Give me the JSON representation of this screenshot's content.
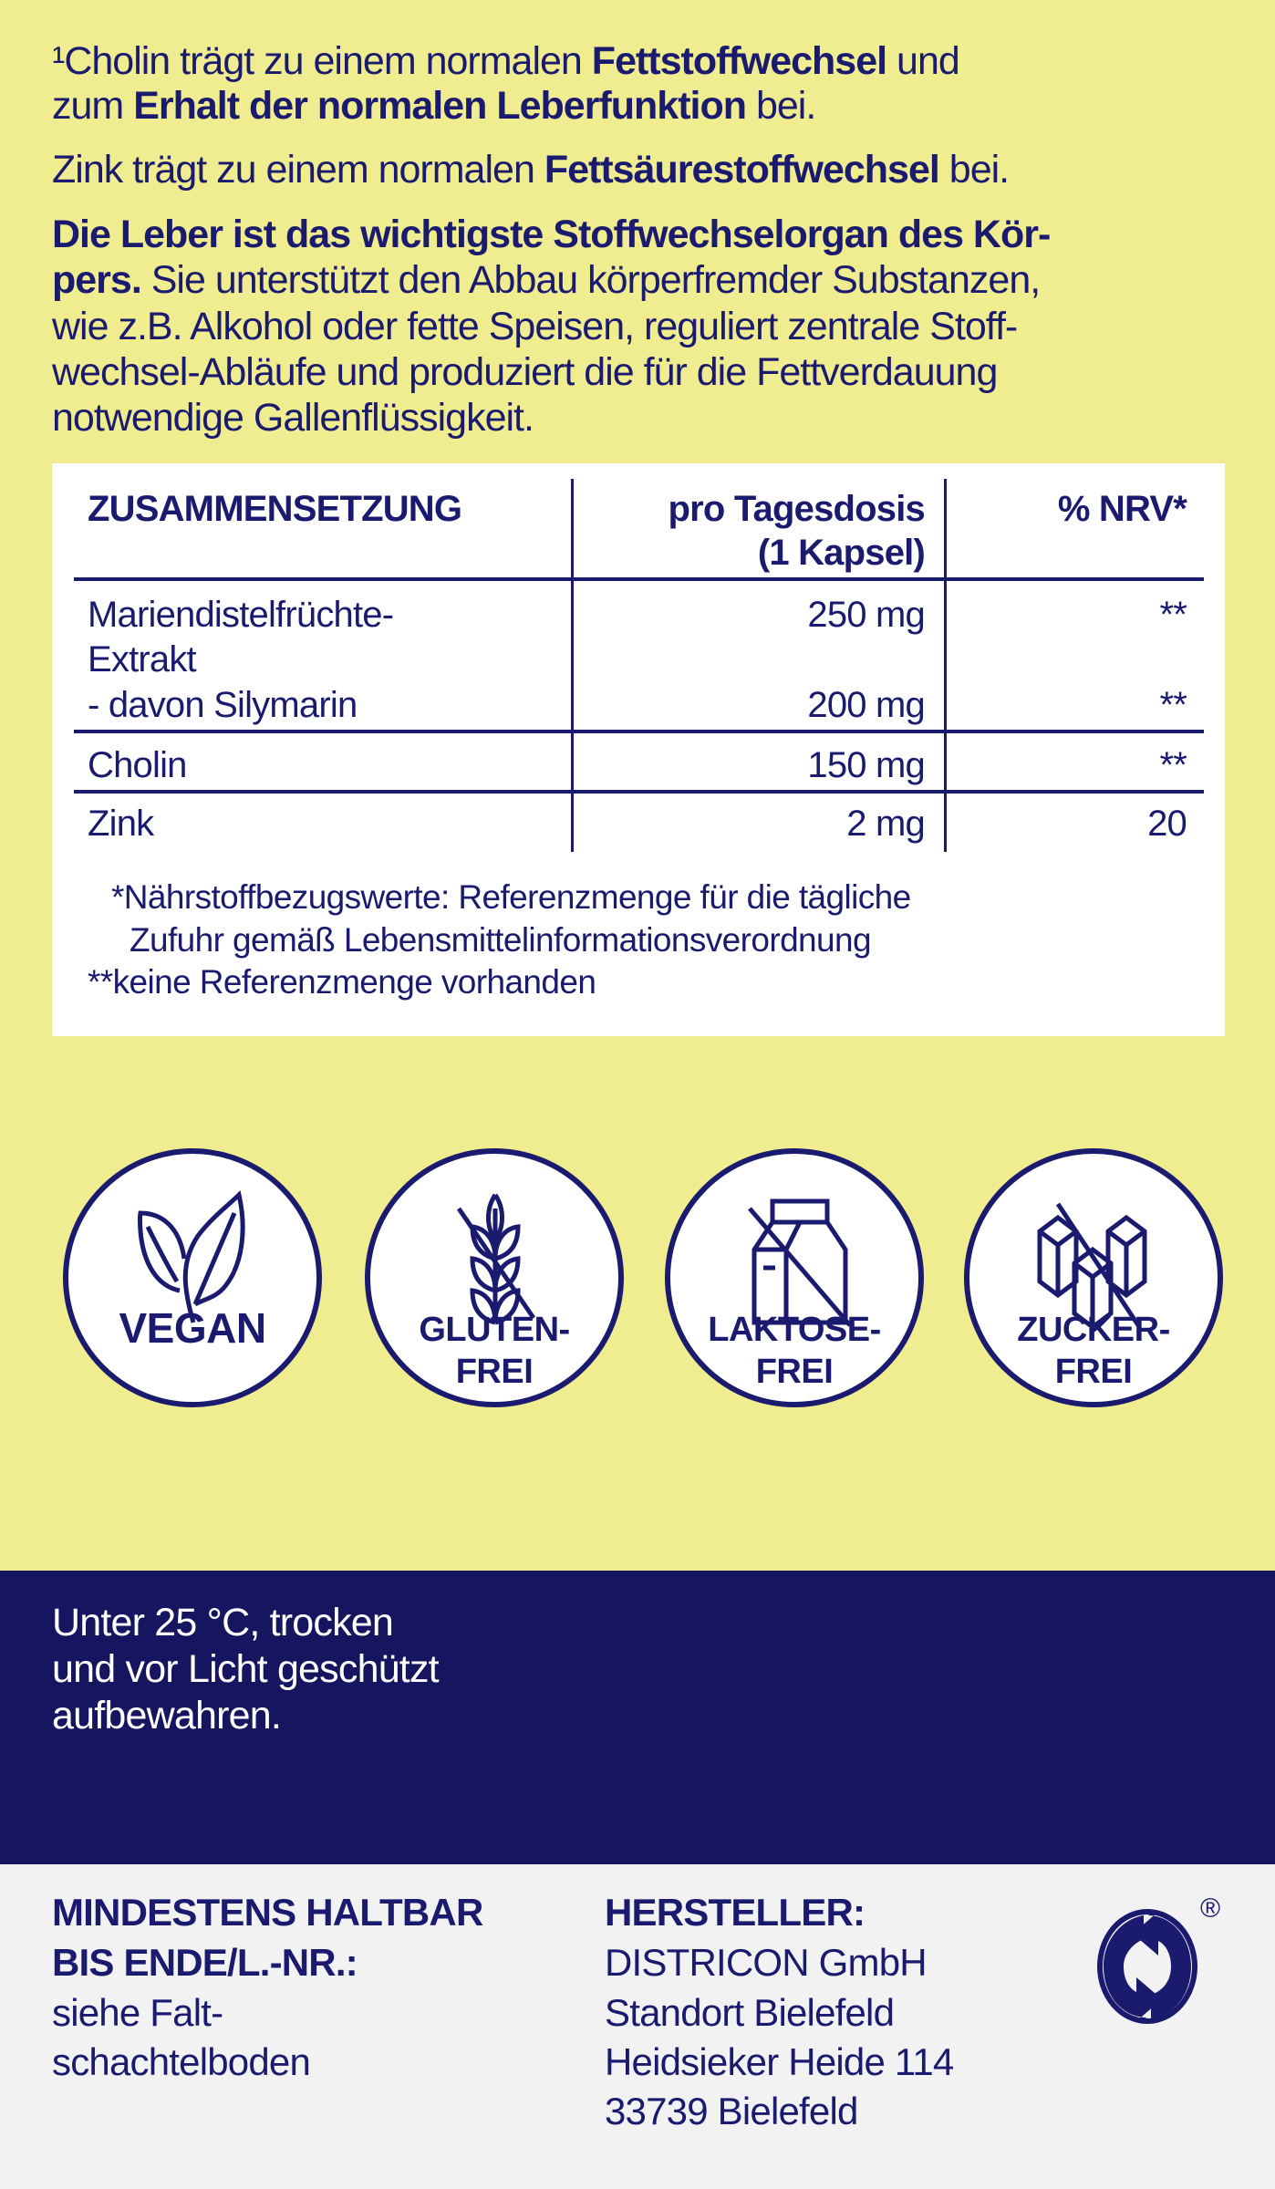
{
  "intro": {
    "p1_line1": [
      "¹Cholin trägt zu einem normalen ",
      "Fettstoffwechsel",
      " und"
    ],
    "p1_line2": [
      "zum ",
      "Erhalt der normalen Leberfunktion",
      " bei."
    ],
    "p2": [
      "Zink trägt zu einem normalen ",
      "Fettsäurestoffwechsel",
      " bei."
    ],
    "p3_line1": "Die Leber ist das wichtigste Stoffwechselorgan des Kör-",
    "p3_line2": [
      "pers.",
      " Sie unterstützt den Abbau körperfremder Substanzen,"
    ],
    "p3_line3": "wie z.B. Alkohol oder fette Speisen, reguliert zentrale Stoff-",
    "p3_line4": "wechsel-Abläufe und produziert die für die Fettverdauung",
    "p3_line5": "notwendige Gallenflüssigkeit."
  },
  "table": {
    "headers": [
      "ZUSAMMENSETZUNG",
      "pro Tagesdosis",
      "(1 Kapsel)",
      "% NRV*"
    ],
    "rows": [
      {
        "name": "Mariendistelfrüchte-",
        "name2": "Extrakt",
        "amount": "250 mg",
        "nrv": "**"
      },
      {
        "name": "- davon Silymarin",
        "amount": "200 mg",
        "nrv": "**"
      },
      {
        "name": "Cholin",
        "amount": "150 mg",
        "nrv": "**"
      },
      {
        "name": "Zink",
        "amount": "2 mg",
        "nrv": "20"
      }
    ],
    "footnotes": [
      "*Nährstoffbezugswerte: Referenzmenge für die tägliche",
      "Zufuhr gemäß Lebensmittelinformationsverordnung",
      "**keine Referenzmenge vorhanden"
    ]
  },
  "badges": [
    {
      "icon": "leaf-icon",
      "label1": "VEGAN"
    },
    {
      "icon": "wheat-crossed-icon",
      "label1": "GLUTEN-",
      "label2": "FREI"
    },
    {
      "icon": "milk-carton-crossed-icon",
      "label1": "LAKTOSE-",
      "label2": "FREI"
    },
    {
      "icon": "sugar-cubes-crossed-icon",
      "label1": "ZUCKER-",
      "label2": "FREI"
    }
  ],
  "storage": [
    "Unter 25 °C, trocken",
    "und vor Licht geschützt",
    "aufbewahren."
  ],
  "bottom": {
    "best_before": [
      "MINDESTENS HALTBAR",
      "BIS ENDE/L.-NR.:",
      "siehe Falt-",
      "schachtelboden"
    ],
    "manufacturer": [
      "HERSTELLER:",
      "DISTRICON GmbH",
      "Standort Bielefeld",
      "Heidsieker Heide 114",
      "33739 Bielefeld"
    ],
    "logo": "green-dot-recycling-icon",
    "registered": "®"
  },
  "colors": {
    "background": "#f0ec90",
    "navy": "#151560",
    "text": "#1a1a6e",
    "footer": "#f2f2f2"
  }
}
